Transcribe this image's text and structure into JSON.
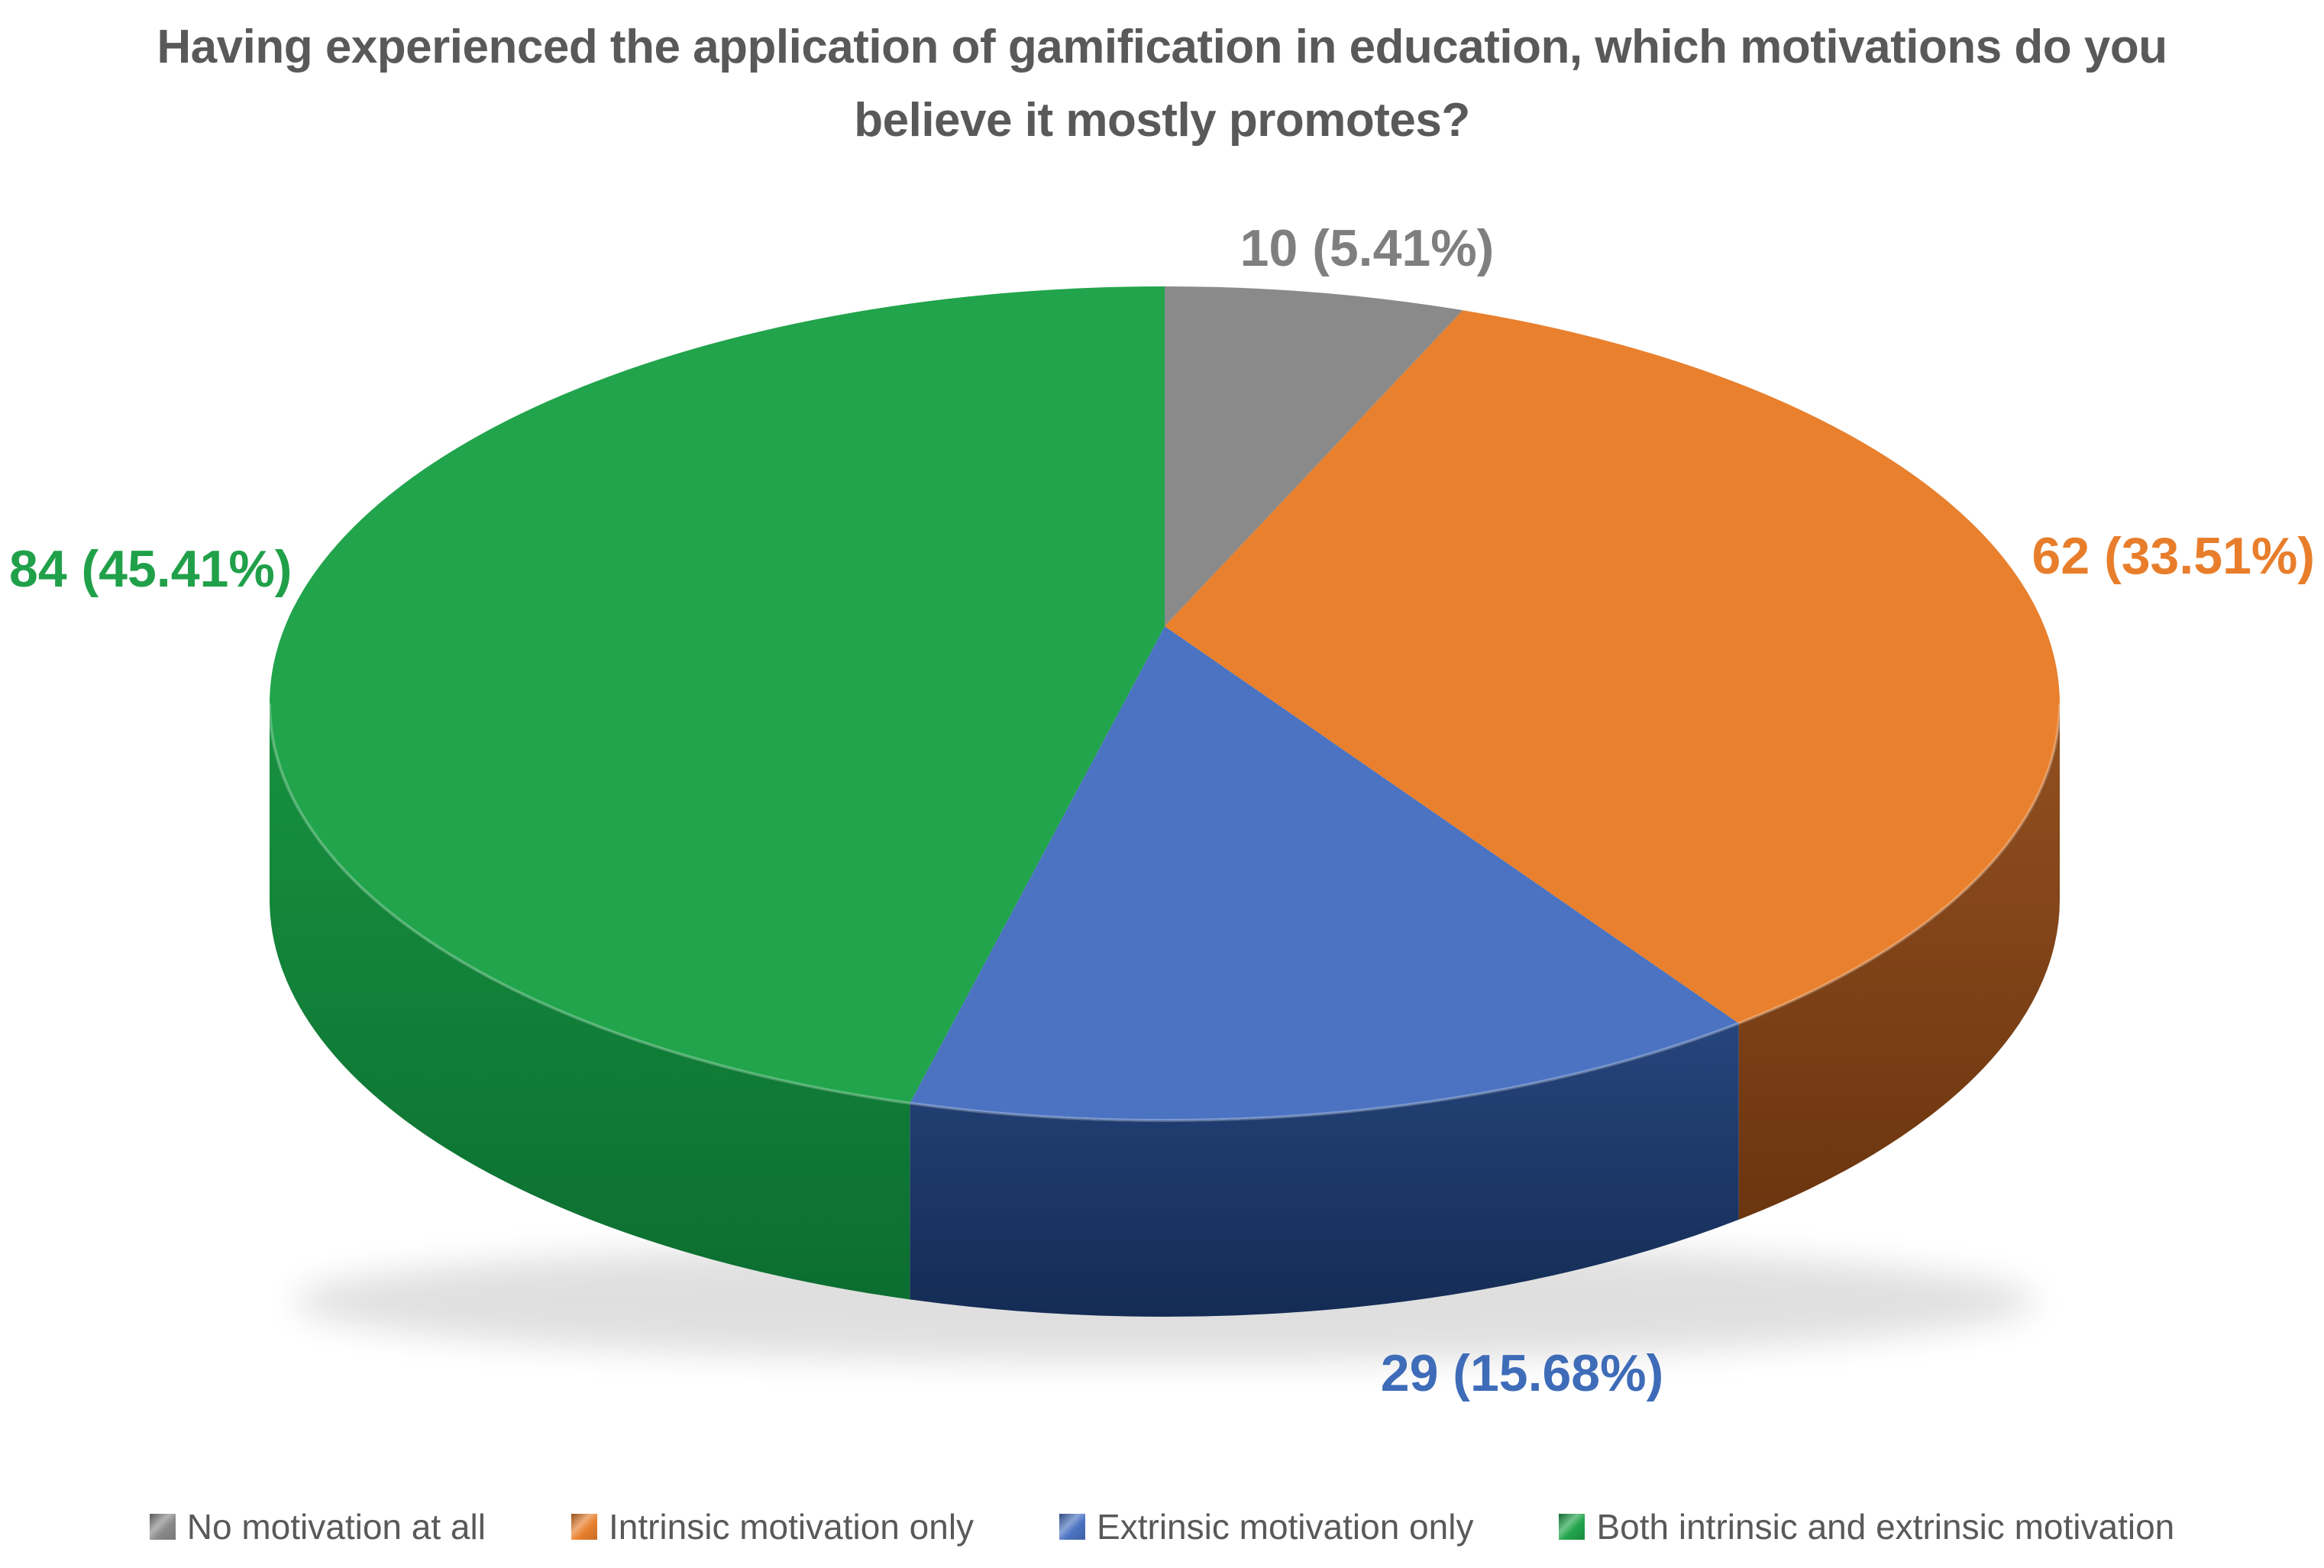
{
  "page": {
    "background": "#FFFFFF"
  },
  "chart_data": {
    "type": "pie",
    "projection": "3d",
    "title": "Having experienced the application of gamification in education, which motivations do you believe it mostly promotes?",
    "title_lines": [
      "Having experienced the application of gamification in education, which motivations do you",
      "believe it mostly promotes?"
    ],
    "title_color": "#595959",
    "legend_position": "bottom",
    "legend_text_color": "#595959",
    "start_angle_deg": 0,
    "direction": "clockwise",
    "total": 185,
    "slices": [
      {
        "label": "No motivation at all",
        "value": 10,
        "percent": 5.41,
        "display": "10 (5.41%)",
        "color": "#8A8A8A",
        "side_top": "#777777",
        "side_bottom": "#5F5F5F",
        "label_color": "#7F7F7F"
      },
      {
        "label": "Intrinsic motivation only",
        "value": 62,
        "percent": 33.51,
        "display": "62 (33.51%)",
        "color": "#E8802E",
        "side_top": "#935020",
        "side_bottom": "#6B350F",
        "label_color": "#E87E2B"
      },
      {
        "label": "Extrinsic motivation only",
        "value": 29,
        "percent": 15.68,
        "display": "29 (15.68%)",
        "color": "#4B73C1",
        "side_top": "#26457C",
        "side_bottom": "#142C55",
        "label_color": "#3E6CB8"
      },
      {
        "label": "Both intrinsic and extrinsic motivation",
        "value": 84,
        "percent": 45.41,
        "display": "84 (45.41%)",
        "color": "#21A44B",
        "side_top": "#17923F",
        "side_bottom": "#0C6E31",
        "label_color": "#21A04A"
      }
    ]
  }
}
